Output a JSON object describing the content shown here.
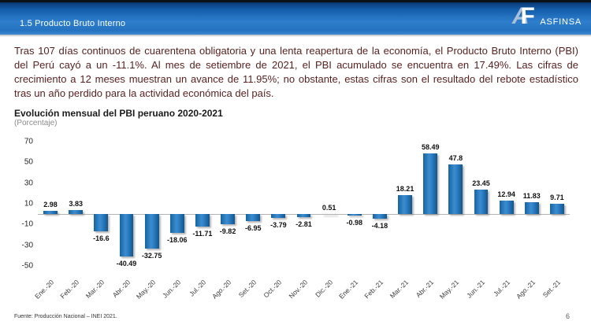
{
  "header": {
    "title": "1.5 Producto Bruto Interno",
    "logo_a": "A",
    "logo_f": "F",
    "logo_text": "ASFINSA"
  },
  "intro": {
    "text": "Tras 107 días continuos de cuarentena obligatoria y una lenta reapertura de la economía, el Producto Bruto Interno (PBI) del Perú cayó a un -11.1%. Al mes de setiembre de 2021, el PBI acumulado se encuentra en 17.49%. Las cifras de crecimiento a 12 meses muestran un avance de 11.95%; no obstante, estas cifras son el resultado del rebote estadístico tras un año perdido para la actividad económica del país."
  },
  "chart_data": {
    "type": "bar",
    "title": "Evolución mensual del PBI peruano 2020-2021",
    "subtitle": "(Porcentaje)",
    "categories": [
      "Ene.-20",
      "Feb.-20",
      "Mar.-20",
      "Abr.-20",
      "May.-20",
      "Jun.-20",
      "Jul.-20",
      "Ago.-20",
      "Set.-20",
      "Oct.-20",
      "Nov.-20",
      "Dic.-20",
      "Ene.-21",
      "Feb.-21",
      "Mar.-21",
      "Abr.-21",
      "May.-21",
      "Jun.-21",
      "Jul.-21",
      "Ago.-21",
      "Set.-21"
    ],
    "values": [
      2.98,
      3.83,
      -16.6,
      -40.49,
      -32.75,
      -18.06,
      -11.71,
      -9.82,
      -6.95,
      -3.79,
      -2.81,
      0.51,
      -0.98,
      -4.18,
      18.21,
      58.49,
      47.8,
      23.45,
      12.94,
      11.83,
      9.71
    ],
    "xlabel": "",
    "ylabel": "",
    "y_ticks": [
      70,
      50,
      30,
      10,
      -10,
      -30,
      -50
    ],
    "ylim": [
      -55,
      75
    ],
    "bar_color": "#2278BE",
    "grid": false,
    "legend": false,
    "value_labels_shown": true
  },
  "footer": {
    "source": "Fuente: Producción Nacional – INEI 2021.",
    "page_number": "6"
  }
}
